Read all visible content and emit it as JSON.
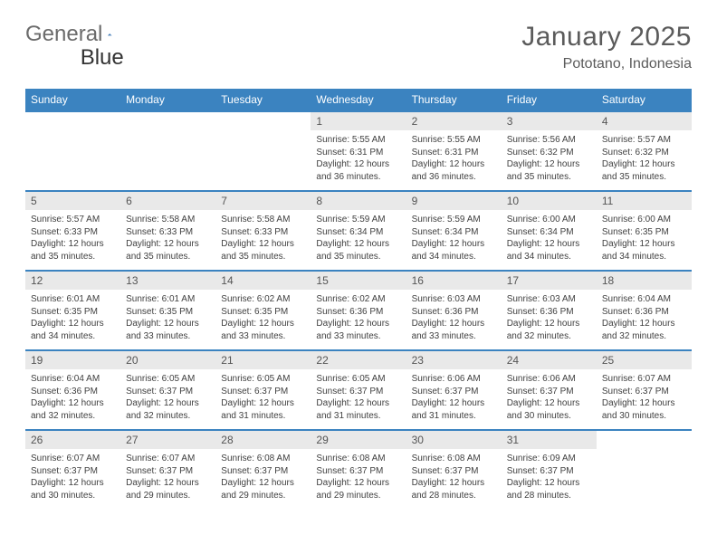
{
  "logo": {
    "word1": "General",
    "word2": "Blue"
  },
  "title": "January 2025",
  "location": "Pototano, Indonesia",
  "header_bg": "#3b83c0",
  "daynum_bg": "#e9e9e9",
  "weekdays": [
    "Sunday",
    "Monday",
    "Tuesday",
    "Wednesday",
    "Thursday",
    "Friday",
    "Saturday"
  ],
  "weeks": [
    [
      {
        "n": "",
        "lines": []
      },
      {
        "n": "",
        "lines": []
      },
      {
        "n": "",
        "lines": []
      },
      {
        "n": "1",
        "lines": [
          "Sunrise: 5:55 AM",
          "Sunset: 6:31 PM",
          "Daylight: 12 hours and 36 minutes."
        ]
      },
      {
        "n": "2",
        "lines": [
          "Sunrise: 5:55 AM",
          "Sunset: 6:31 PM",
          "Daylight: 12 hours and 36 minutes."
        ]
      },
      {
        "n": "3",
        "lines": [
          "Sunrise: 5:56 AM",
          "Sunset: 6:32 PM",
          "Daylight: 12 hours and 35 minutes."
        ]
      },
      {
        "n": "4",
        "lines": [
          "Sunrise: 5:57 AM",
          "Sunset: 6:32 PM",
          "Daylight: 12 hours and 35 minutes."
        ]
      }
    ],
    [
      {
        "n": "5",
        "lines": [
          "Sunrise: 5:57 AM",
          "Sunset: 6:33 PM",
          "Daylight: 12 hours and 35 minutes."
        ]
      },
      {
        "n": "6",
        "lines": [
          "Sunrise: 5:58 AM",
          "Sunset: 6:33 PM",
          "Daylight: 12 hours and 35 minutes."
        ]
      },
      {
        "n": "7",
        "lines": [
          "Sunrise: 5:58 AM",
          "Sunset: 6:33 PM",
          "Daylight: 12 hours and 35 minutes."
        ]
      },
      {
        "n": "8",
        "lines": [
          "Sunrise: 5:59 AM",
          "Sunset: 6:34 PM",
          "Daylight: 12 hours and 35 minutes."
        ]
      },
      {
        "n": "9",
        "lines": [
          "Sunrise: 5:59 AM",
          "Sunset: 6:34 PM",
          "Daylight: 12 hours and 34 minutes."
        ]
      },
      {
        "n": "10",
        "lines": [
          "Sunrise: 6:00 AM",
          "Sunset: 6:34 PM",
          "Daylight: 12 hours and 34 minutes."
        ]
      },
      {
        "n": "11",
        "lines": [
          "Sunrise: 6:00 AM",
          "Sunset: 6:35 PM",
          "Daylight: 12 hours and 34 minutes."
        ]
      }
    ],
    [
      {
        "n": "12",
        "lines": [
          "Sunrise: 6:01 AM",
          "Sunset: 6:35 PM",
          "Daylight: 12 hours and 34 minutes."
        ]
      },
      {
        "n": "13",
        "lines": [
          "Sunrise: 6:01 AM",
          "Sunset: 6:35 PM",
          "Daylight: 12 hours and 33 minutes."
        ]
      },
      {
        "n": "14",
        "lines": [
          "Sunrise: 6:02 AM",
          "Sunset: 6:35 PM",
          "Daylight: 12 hours and 33 minutes."
        ]
      },
      {
        "n": "15",
        "lines": [
          "Sunrise: 6:02 AM",
          "Sunset: 6:36 PM",
          "Daylight: 12 hours and 33 minutes."
        ]
      },
      {
        "n": "16",
        "lines": [
          "Sunrise: 6:03 AM",
          "Sunset: 6:36 PM",
          "Daylight: 12 hours and 33 minutes."
        ]
      },
      {
        "n": "17",
        "lines": [
          "Sunrise: 6:03 AM",
          "Sunset: 6:36 PM",
          "Daylight: 12 hours and 32 minutes."
        ]
      },
      {
        "n": "18",
        "lines": [
          "Sunrise: 6:04 AM",
          "Sunset: 6:36 PM",
          "Daylight: 12 hours and 32 minutes."
        ]
      }
    ],
    [
      {
        "n": "19",
        "lines": [
          "Sunrise: 6:04 AM",
          "Sunset: 6:36 PM",
          "Daylight: 12 hours and 32 minutes."
        ]
      },
      {
        "n": "20",
        "lines": [
          "Sunrise: 6:05 AM",
          "Sunset: 6:37 PM",
          "Daylight: 12 hours and 32 minutes."
        ]
      },
      {
        "n": "21",
        "lines": [
          "Sunrise: 6:05 AM",
          "Sunset: 6:37 PM",
          "Daylight: 12 hours and 31 minutes."
        ]
      },
      {
        "n": "22",
        "lines": [
          "Sunrise: 6:05 AM",
          "Sunset: 6:37 PM",
          "Daylight: 12 hours and 31 minutes."
        ]
      },
      {
        "n": "23",
        "lines": [
          "Sunrise: 6:06 AM",
          "Sunset: 6:37 PM",
          "Daylight: 12 hours and 31 minutes."
        ]
      },
      {
        "n": "24",
        "lines": [
          "Sunrise: 6:06 AM",
          "Sunset: 6:37 PM",
          "Daylight: 12 hours and 30 minutes."
        ]
      },
      {
        "n": "25",
        "lines": [
          "Sunrise: 6:07 AM",
          "Sunset: 6:37 PM",
          "Daylight: 12 hours and 30 minutes."
        ]
      }
    ],
    [
      {
        "n": "26",
        "lines": [
          "Sunrise: 6:07 AM",
          "Sunset: 6:37 PM",
          "Daylight: 12 hours and 30 minutes."
        ]
      },
      {
        "n": "27",
        "lines": [
          "Sunrise: 6:07 AM",
          "Sunset: 6:37 PM",
          "Daylight: 12 hours and 29 minutes."
        ]
      },
      {
        "n": "28",
        "lines": [
          "Sunrise: 6:08 AM",
          "Sunset: 6:37 PM",
          "Daylight: 12 hours and 29 minutes."
        ]
      },
      {
        "n": "29",
        "lines": [
          "Sunrise: 6:08 AM",
          "Sunset: 6:37 PM",
          "Daylight: 12 hours and 29 minutes."
        ]
      },
      {
        "n": "30",
        "lines": [
          "Sunrise: 6:08 AM",
          "Sunset: 6:37 PM",
          "Daylight: 12 hours and 28 minutes."
        ]
      },
      {
        "n": "31",
        "lines": [
          "Sunrise: 6:09 AM",
          "Sunset: 6:37 PM",
          "Daylight: 12 hours and 28 minutes."
        ]
      },
      {
        "n": "",
        "lines": []
      }
    ]
  ]
}
